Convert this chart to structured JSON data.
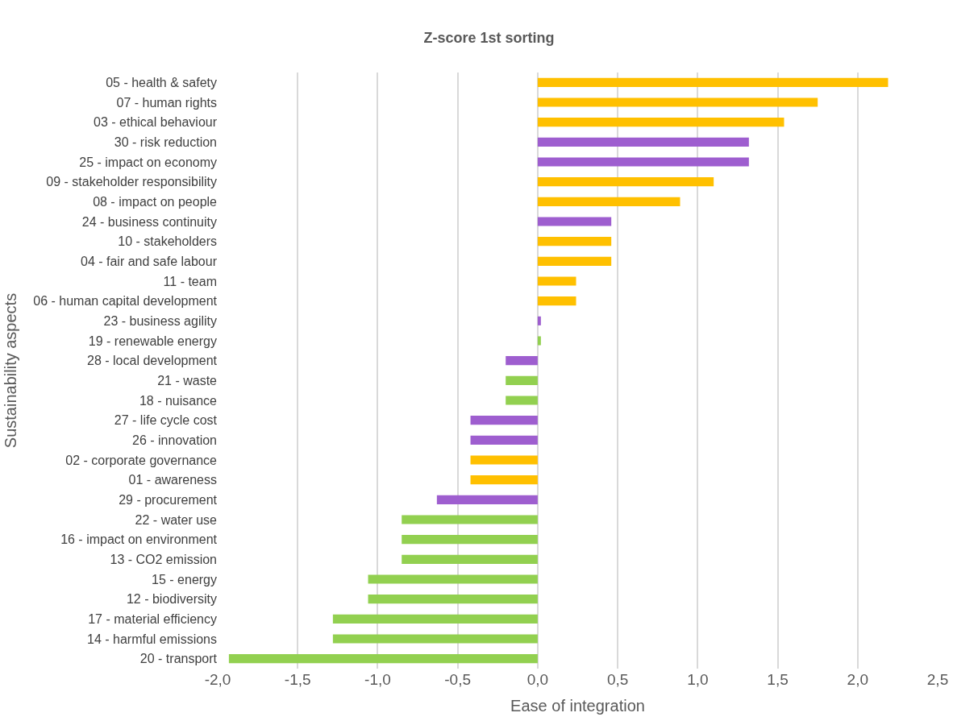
{
  "chart_data": {
    "type": "bar",
    "orientation": "horizontal",
    "title": "Z-score 1st sorting",
    "xlabel": "Ease of integration",
    "ylabel": "Sustainability aspects",
    "categories": [
      "05 - health & safety",
      "07 - human rights",
      "03 - ethical behaviour",
      "30 - risk reduction",
      "25 - impact on economy",
      "09 - stakeholder responsibility",
      "08 - impact on people",
      "24 - business continuity",
      "10 - stakeholders",
      "04 - fair and safe labour",
      "11 - team",
      "06 - human capital development",
      "23 - business agility",
      "19 - renewable energy",
      "28 - local development",
      "21 - waste",
      "18 - nuisance",
      "27 - life cycle cost",
      "26 - innovation",
      "02 - corporate governance",
      "01 - awareness",
      "29 - procurement",
      "22 - water use",
      "16 - impact on environment",
      "13 - CO2 emission",
      "15 - energy",
      "12 - biodiversity",
      "17 - material efficiency",
      "14 - harmful emissions",
      "20 - transport"
    ],
    "values": [
      2.19,
      1.75,
      1.54,
      1.32,
      1.32,
      1.1,
      0.89,
      0.46,
      0.46,
      0.46,
      0.24,
      0.24,
      0.02,
      0.02,
      -0.2,
      -0.2,
      -0.2,
      -0.42,
      -0.42,
      -0.42,
      -0.42,
      -0.63,
      -0.85,
      -0.85,
      -0.85,
      -1.06,
      -1.06,
      -1.28,
      -1.28,
      -1.93
    ],
    "colors": [
      "#ffc000",
      "#ffc000",
      "#ffc000",
      "#9e5ecf",
      "#9e5ecf",
      "#ffc000",
      "#ffc000",
      "#9e5ecf",
      "#ffc000",
      "#ffc000",
      "#ffc000",
      "#ffc000",
      "#9e5ecf",
      "#92d050",
      "#9e5ecf",
      "#92d050",
      "#92d050",
      "#9e5ecf",
      "#9e5ecf",
      "#ffc000",
      "#ffc000",
      "#9e5ecf",
      "#92d050",
      "#92d050",
      "#92d050",
      "#92d050",
      "#92d050",
      "#92d050",
      "#92d050",
      "#92d050"
    ],
    "xlim": [
      -2.0,
      2.5
    ],
    "xticks": [
      {
        "value": -2.0,
        "label": "-2,0"
      },
      {
        "value": -1.5,
        "label": "-1,5"
      },
      {
        "value": -1.0,
        "label": "-1,0"
      },
      {
        "value": -0.5,
        "label": "-0,5"
      },
      {
        "value": 0.0,
        "label": "0,0"
      },
      {
        "value": 0.5,
        "label": "0,5"
      },
      {
        "value": 1.0,
        "label": "1,0"
      },
      {
        "value": 1.5,
        "label": "1,5"
      },
      {
        "value": 2.0,
        "label": "2,0"
      },
      {
        "value": 2.5,
        "label": "2,5"
      }
    ],
    "grid": "x"
  }
}
